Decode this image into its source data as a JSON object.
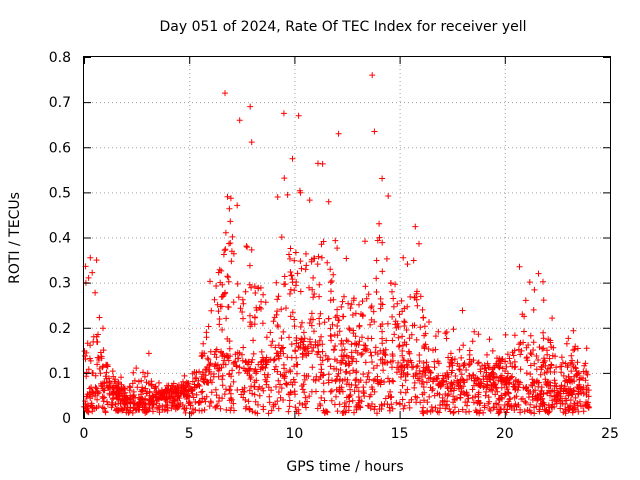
{
  "chart_data": {
    "type": "scatter",
    "title": "Day 051 of 2024, Rate Of TEC Index for receiver yell",
    "xlabel": "GPS time / hours",
    "ylabel": "ROTI / TECUs",
    "xlim": [
      0,
      25
    ],
    "ylim": [
      0,
      0.8
    ],
    "x_ticks": [
      "0",
      "5",
      "10",
      "15",
      "20",
      "25"
    ],
    "y_ticks": [
      "0",
      "0.1",
      "0.2",
      "0.3",
      "0.4",
      "0.5",
      "0.6",
      "0.7",
      "0.8"
    ],
    "x_tick_values": [
      0,
      5,
      10,
      15,
      20,
      25
    ],
    "y_tick_values": [
      0,
      0.1,
      0.2,
      0.3,
      0.4,
      0.5,
      0.6,
      0.7,
      0.8
    ],
    "grid": true,
    "marker": "+",
    "color": "#ff0000",
    "series": [
      {
        "name": "ROTI",
        "envelope": {
          "hours": [
            0,
            0.5,
            1,
            1.5,
            2,
            2.5,
            3,
            3.5,
            4,
            4.5,
            5,
            5.5,
            6,
            6.5,
            7,
            7.5,
            8,
            8.5,
            9,
            9.5,
            10,
            10.5,
            11,
            11.5,
            12,
            12.5,
            13,
            13.5,
            14,
            14.5,
            15,
            15.5,
            16,
            16.5,
            17,
            17.5,
            18,
            18.5,
            19,
            19.5,
            20,
            20.5,
            21,
            21.5,
            22,
            22.5,
            23,
            23.5,
            24
          ],
          "base_roti": [
            0.03,
            0.05,
            0.06,
            0.05,
            0.03,
            0.03,
            0.03,
            0.04,
            0.04,
            0.05,
            0.06,
            0.07,
            0.1,
            0.12,
            0.12,
            0.1,
            0.1,
            0.1,
            0.12,
            0.13,
            0.14,
            0.14,
            0.14,
            0.13,
            0.12,
            0.12,
            0.12,
            0.12,
            0.12,
            0.12,
            0.1,
            0.1,
            0.1,
            0.08,
            0.07,
            0.07,
            0.07,
            0.07,
            0.07,
            0.07,
            0.07,
            0.06,
            0.06,
            0.06,
            0.06,
            0.05,
            0.05,
            0.05,
            0.05
          ],
          "max_roti": [
            0.35,
            0.35,
            0.2,
            0.12,
            0.1,
            0.17,
            0.18,
            0.08,
            0.09,
            0.1,
            0.1,
            0.2,
            0.35,
            0.6,
            0.72,
            0.45,
            0.69,
            0.4,
            0.45,
            0.6,
            0.67,
            0.55,
            0.6,
            0.63,
            0.4,
            0.4,
            0.42,
            0.45,
            0.76,
            0.5,
            0.4,
            0.42,
            0.5,
            0.25,
            0.2,
            0.2,
            0.25,
            0.2,
            0.18,
            0.2,
            0.2,
            0.26,
            0.34,
            0.28,
            0.32,
            0.22,
            0.22,
            0.2,
            0.19
          ]
        },
        "notable_points": [
          {
            "x": 13.7,
            "y": 0.76
          },
          {
            "x": 6.7,
            "y": 0.72
          },
          {
            "x": 7.9,
            "y": 0.69
          },
          {
            "x": 9.5,
            "y": 0.675
          },
          {
            "x": 10.2,
            "y": 0.67
          },
          {
            "x": 7.4,
            "y": 0.66
          },
          {
            "x": 13.8,
            "y": 0.635
          },
          {
            "x": 12.1,
            "y": 0.63
          },
          {
            "x": 0.3,
            "y": 0.355
          },
          {
            "x": 0.6,
            "y": 0.35
          },
          {
            "x": 20.7,
            "y": 0.335
          },
          {
            "x": 21.6,
            "y": 0.32
          }
        ]
      }
    ]
  }
}
